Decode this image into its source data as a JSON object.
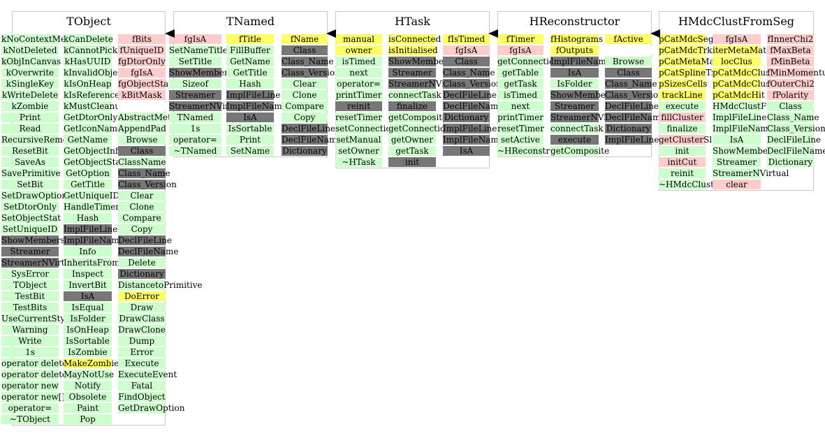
{
  "colors": {
    "green": "#ccffcc",
    "pink": "#ffcccc",
    "yellow": "#ffff66",
    "gray": "#777777"
  },
  "classes": [
    {
      "title": "TObject",
      "columns": [
        [
          [
            "kNoContextMenu",
            "green"
          ],
          [
            "kNotDeleted",
            "green"
          ],
          [
            "kObjInCanvas",
            "green"
          ],
          [
            "kOverwrite",
            "green"
          ],
          [
            "kSingleKey",
            "green"
          ],
          [
            "kWriteDelete",
            "green"
          ],
          [
            "kZombie",
            "green"
          ],
          [
            "Print",
            "green"
          ],
          [
            "Read",
            "green"
          ],
          [
            "RecursiveRemove",
            "green"
          ],
          [
            "ResetBit",
            "green"
          ],
          [
            "SaveAs",
            "green"
          ],
          [
            "SavePrimitive",
            "green"
          ],
          [
            "SetBit",
            "green"
          ],
          [
            "SetDrawOption",
            "green"
          ],
          [
            "SetDtorOnly",
            "green"
          ],
          [
            "SetObjectStat",
            "green"
          ],
          [
            "SetUniqueID",
            "green"
          ],
          [
            "ShowMembers",
            "gray"
          ],
          [
            "Streamer",
            "gray"
          ],
          [
            "StreamerNVirtual",
            "gray"
          ],
          [
            "SysError",
            "green"
          ],
          [
            "TObject",
            "green"
          ],
          [
            "TestBit",
            "green"
          ],
          [
            "TestBits",
            "green"
          ],
          [
            "UseCurrentStyle",
            "green"
          ],
          [
            "Warning",
            "green"
          ],
          [
            "Write",
            "green"
          ],
          [
            "1s",
            "green"
          ],
          [
            "operator delete",
            "green"
          ],
          [
            "operator delete[]",
            "green"
          ],
          [
            "operator new",
            "green"
          ],
          [
            "operator new[]",
            "green"
          ],
          [
            "operator=",
            "green"
          ],
          [
            "~TObject",
            "green"
          ]
        ],
        [
          [
            "kCanDelete",
            "green"
          ],
          [
            "kCannotPick",
            "green"
          ],
          [
            "kHasUUID",
            "green"
          ],
          [
            "kInvalidObject",
            "green"
          ],
          [
            "kIsOnHeap",
            "green"
          ],
          [
            "kIsReferenced",
            "green"
          ],
          [
            "kMustCleanup",
            "green"
          ],
          [
            "GetDtorOnly",
            "green"
          ],
          [
            "GetIconName",
            "green"
          ],
          [
            "GetName",
            "green"
          ],
          [
            "GetObjectInfo",
            "green"
          ],
          [
            "GetObjectStat",
            "green"
          ],
          [
            "GetOption",
            "green"
          ],
          [
            "GetTitle",
            "green"
          ],
          [
            "GetUniqueID",
            "green"
          ],
          [
            "HandleTimer",
            "green"
          ],
          [
            "Hash",
            "green"
          ],
          [
            "ImplFileLine",
            "gray"
          ],
          [
            "ImplFileName",
            "gray"
          ],
          [
            "Info",
            "green"
          ],
          [
            "InheritsFrom",
            "green"
          ],
          [
            "Inspect",
            "green"
          ],
          [
            "InvertBit",
            "green"
          ],
          [
            "IsA",
            "gray"
          ],
          [
            "IsEqual",
            "green"
          ],
          [
            "IsFolder",
            "green"
          ],
          [
            "IsOnHeap",
            "green"
          ],
          [
            "IsSortable",
            "green"
          ],
          [
            "IsZombie",
            "green"
          ],
          [
            "MakeZombie",
            "yellow"
          ],
          [
            "MayNotUse",
            "green"
          ],
          [
            "Notify",
            "green"
          ],
          [
            "Obsolete",
            "green"
          ],
          [
            "Paint",
            "green"
          ],
          [
            "Pop",
            "green"
          ]
        ],
        [
          [
            "fBits",
            "pink"
          ],
          [
            "fUniqueID",
            "pink"
          ],
          [
            "fgDtorOnly",
            "pink"
          ],
          [
            "fgIsA",
            "pink"
          ],
          [
            "fgObjectStat",
            "pink"
          ],
          [
            "kBitMask",
            "pink"
          ],
          [
            "",
            "white"
          ],
          [
            "AbstractMethod",
            "green"
          ],
          [
            "AppendPad",
            "green"
          ],
          [
            "Browse",
            "green"
          ],
          [
            "Class",
            "gray"
          ],
          [
            "ClassName",
            "green"
          ],
          [
            "Class_Name",
            "gray"
          ],
          [
            "Class_Version",
            "gray"
          ],
          [
            "Clear",
            "green"
          ],
          [
            "Clone",
            "green"
          ],
          [
            "Compare",
            "green"
          ],
          [
            "Copy",
            "green"
          ],
          [
            "DeclFileLine",
            "gray"
          ],
          [
            "DeclFileName",
            "gray"
          ],
          [
            "Delete",
            "green"
          ],
          [
            "Dictionary",
            "gray"
          ],
          [
            "DistancetoPrimitive",
            "green"
          ],
          [
            "DoError",
            "yellow"
          ],
          [
            "Draw",
            "green"
          ],
          [
            "DrawClass",
            "green"
          ],
          [
            "DrawClone",
            "green"
          ],
          [
            "Dump",
            "green"
          ],
          [
            "Error",
            "green"
          ],
          [
            "Execute",
            "green"
          ],
          [
            "ExecuteEvent",
            "green"
          ],
          [
            "Fatal",
            "green"
          ],
          [
            "FindObject",
            "green"
          ],
          [
            "GetDrawOption",
            "green"
          ]
        ]
      ]
    },
    {
      "title": "TNamed",
      "columns": [
        [
          [
            "fgIsA",
            "pink"
          ],
          [
            "SetNameTitle",
            "green"
          ],
          [
            "SetTitle",
            "green"
          ],
          [
            "ShowMembers",
            "gray"
          ],
          [
            "Sizeof",
            "green"
          ],
          [
            "Streamer",
            "gray"
          ],
          [
            "StreamerNVirtual",
            "gray"
          ],
          [
            "TNamed",
            "green"
          ],
          [
            "1s",
            "green"
          ],
          [
            "operator=",
            "green"
          ],
          [
            "~TNamed",
            "green"
          ]
        ],
        [
          [
            "fTitle",
            "yellow"
          ],
          [
            "FillBuffer",
            "green"
          ],
          [
            "GetName",
            "green"
          ],
          [
            "GetTitle",
            "green"
          ],
          [
            "Hash",
            "green"
          ],
          [
            "ImplFileLine",
            "gray"
          ],
          [
            "ImplFileName",
            "gray"
          ],
          [
            "IsA",
            "gray"
          ],
          [
            "IsSortable",
            "green"
          ],
          [
            "Print",
            "green"
          ],
          [
            "SetName",
            "green"
          ]
        ],
        [
          [
            "fName",
            "yellow"
          ],
          [
            "Class",
            "gray"
          ],
          [
            "Class_Name",
            "gray"
          ],
          [
            "Class_Version",
            "gray"
          ],
          [
            "Clear",
            "green"
          ],
          [
            "Clone",
            "green"
          ],
          [
            "Compare",
            "green"
          ],
          [
            "Copy",
            "green"
          ],
          [
            "DeclFileLine",
            "gray"
          ],
          [
            "DeclFileName",
            "gray"
          ],
          [
            "Dictionary",
            "gray"
          ]
        ]
      ]
    },
    {
      "title": "HTask",
      "columns": [
        [
          [
            "manual",
            "yellow"
          ],
          [
            "owner",
            "yellow"
          ],
          [
            "isTimed",
            "green"
          ],
          [
            "next",
            "green"
          ],
          [
            "operator=",
            "green"
          ],
          [
            "printTimer",
            "green"
          ],
          [
            "reinit",
            "gray"
          ],
          [
            "resetTimer",
            "green"
          ],
          [
            "setConnections",
            "green"
          ],
          [
            "setManual",
            "green"
          ],
          [
            "setOwner",
            "green"
          ],
          [
            "~HTask",
            "green"
          ]
        ],
        [
          [
            "isConnected",
            "yellow"
          ],
          [
            "isInitialised",
            "yellow"
          ],
          [
            "ShowMembers",
            "gray"
          ],
          [
            "Streamer",
            "gray"
          ],
          [
            "StreamerNVirtual",
            "gray"
          ],
          [
            "connectTask",
            "green"
          ],
          [
            "finalize",
            "gray"
          ],
          [
            "getComposite",
            "green"
          ],
          [
            "getConnections",
            "green"
          ],
          [
            "getOwner",
            "green"
          ],
          [
            "getTask",
            "green"
          ],
          [
            "init",
            "gray"
          ]
        ],
        [
          [
            "fIsTimed",
            "yellow"
          ],
          [
            "fgIsA",
            "pink"
          ],
          [
            "Class",
            "gray"
          ],
          [
            "Class_Name",
            "gray"
          ],
          [
            "Class_Version",
            "gray"
          ],
          [
            "DeclFileLine",
            "gray"
          ],
          [
            "DeclFileName",
            "gray"
          ],
          [
            "Dictionary",
            "gray"
          ],
          [
            "ImplFileLine",
            "gray"
          ],
          [
            "ImplFileName",
            "gray"
          ],
          [
            "IsA",
            "gray"
          ]
        ]
      ]
    },
    {
      "title": "HReconstructor",
      "columns": [
        [
          [
            "fTimer",
            "yellow"
          ],
          [
            "fgIsA",
            "pink"
          ],
          [
            "getConnections",
            "green"
          ],
          [
            "getTable",
            "green"
          ],
          [
            "getTask",
            "green"
          ],
          [
            "isTimed",
            "green"
          ],
          [
            "next",
            "green"
          ],
          [
            "printTimer",
            "green"
          ],
          [
            "resetTimer",
            "green"
          ],
          [
            "setActive",
            "green"
          ],
          [
            "~HReconstructor",
            "green"
          ]
        ],
        [
          [
            "fHistograms",
            "yellow"
          ],
          [
            "fOutputs",
            "yellow"
          ],
          [
            "ImplFileName",
            "gray"
          ],
          [
            "IsA",
            "gray"
          ],
          [
            "IsFolder",
            "green"
          ],
          [
            "ShowMembers",
            "gray"
          ],
          [
            "Streamer",
            "gray"
          ],
          [
            "StreamerNVirtual",
            "gray"
          ],
          [
            "connectTask",
            "green"
          ],
          [
            "execute",
            "gray"
          ],
          [
            "getComposite",
            "green"
          ]
        ],
        [
          [
            "fActive",
            "yellow"
          ],
          [
            "",
            "white"
          ],
          [
            "Browse",
            "green"
          ],
          [
            "Class",
            "gray"
          ],
          [
            "Class_Name",
            "gray"
          ],
          [
            "Class_Version",
            "gray"
          ],
          [
            "DeclFileLine",
            "gray"
          ],
          [
            "DeclFileName",
            "gray"
          ],
          [
            "Dictionary",
            "gray"
          ],
          [
            "ImplFileLine",
            "gray"
          ]
        ]
      ]
    },
    {
      "title": "HMdcClustFromSeg",
      "columns": [
        [
          [
            "pCatMdcSeg",
            "yellow"
          ],
          [
            "pCatMdcTrkCand",
            "yellow"
          ],
          [
            "pCatMetaMatch",
            "yellow"
          ],
          [
            "pCatSplineTrack",
            "yellow"
          ],
          [
            "pSizesCells",
            "yellow"
          ],
          [
            "trackLine",
            "yellow"
          ],
          [
            "execute",
            "green"
          ],
          [
            "fillCluster",
            "pink"
          ],
          [
            "finalize",
            "green"
          ],
          [
            "getClusterSlot",
            "pink"
          ],
          [
            "init",
            "green"
          ],
          [
            "initCut",
            "pink"
          ],
          [
            "reinit",
            "green"
          ],
          [
            "~HMdcClustFromSeg",
            "green"
          ]
        ],
        [
          [
            "fgIsA",
            "pink"
          ],
          [
            "iterMetaMatch",
            "yellow"
          ],
          [
            "locClus",
            "yellow"
          ],
          [
            "pCatMdcClus",
            "yellow"
          ],
          [
            "pCatMdcClusInf",
            "yellow"
          ],
          [
            "pCatMdcHit",
            "yellow"
          ],
          [
            "HMdcClustFromSeg",
            "green"
          ],
          [
            "ImplFileLine",
            "green"
          ],
          [
            "ImplFileName",
            "green"
          ],
          [
            "IsA",
            "green"
          ],
          [
            "ShowMembers",
            "green"
          ],
          [
            "Streamer",
            "green"
          ],
          [
            "StreamerNVirtual",
            "green"
          ],
          [
            "clear",
            "pink"
          ]
        ],
        [
          [
            "fInnerChi2",
            "pink"
          ],
          [
            "fMaxBeta",
            "pink"
          ],
          [
            "fMinBeta",
            "pink"
          ],
          [
            "fMinMomentum",
            "pink"
          ],
          [
            "fOuterChi2",
            "pink"
          ],
          [
            "fPolarity",
            "pink"
          ],
          [
            "Class",
            "green"
          ],
          [
            "Class_Name",
            "green"
          ],
          [
            "Class_Version",
            "green"
          ],
          [
            "DeclFileLine",
            "green"
          ],
          [
            "DeclFileName",
            "green"
          ],
          [
            "Dictionary",
            "green"
          ]
        ]
      ]
    }
  ]
}
